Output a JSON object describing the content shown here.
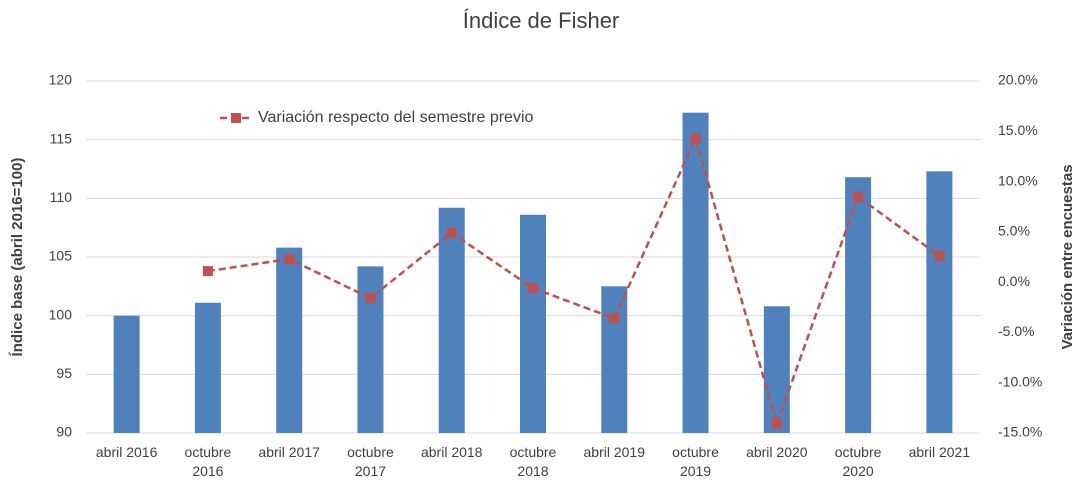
{
  "chart_data": {
    "type": "bar_line",
    "title": "Índice de Fisher",
    "y_label": "Índice base (abril 2016=100)",
    "y2_label": "Variación entre encuestas",
    "categories": [
      "abril 2016",
      "octubre 2016",
      "abril 2017",
      "octubre 2017",
      "abril 2018",
      "octubre 2018",
      "abril 2019",
      "octubre 2019",
      "abril 2020",
      "octubre 2020",
      "abril 2021"
    ],
    "series": [
      {
        "name": null,
        "type": "bar",
        "color": "#4f81bd",
        "values": [
          100,
          101.1,
          105.8,
          104.2,
          109.2,
          108.6,
          102.5,
          117.3,
          100.8,
          111.8,
          112.3
        ]
      },
      {
        "name": "Variación respecto del semestre previo",
        "type": "line",
        "axis": "y2",
        "color": "#c0504d",
        "values": [
          null,
          1.1,
          2.3,
          -1.6,
          4.9,
          -0.6,
          -3.6,
          14.3,
          -14.1,
          8.5,
          2.6
        ]
      }
    ],
    "ylim": [
      90,
      120
    ],
    "yticks": [
      90,
      95,
      100,
      105,
      110,
      115,
      120
    ],
    "y2lim": [
      -15,
      20
    ],
    "y2ticks": [
      {
        "value": -15,
        "label": "-15.0%"
      },
      {
        "value": -10,
        "label": "-10.0%"
      },
      {
        "value": -5,
        "label": "-5.0%"
      },
      {
        "value": 0,
        "label": "0.0%"
      },
      {
        "value": 5,
        "label": "5.0%"
      },
      {
        "value": 10,
        "label": "10.0%"
      },
      {
        "value": 15,
        "label": "15.0%"
      },
      {
        "value": 20,
        "label": "20.0%"
      }
    ],
    "grid": true,
    "legend": "top-left"
  }
}
